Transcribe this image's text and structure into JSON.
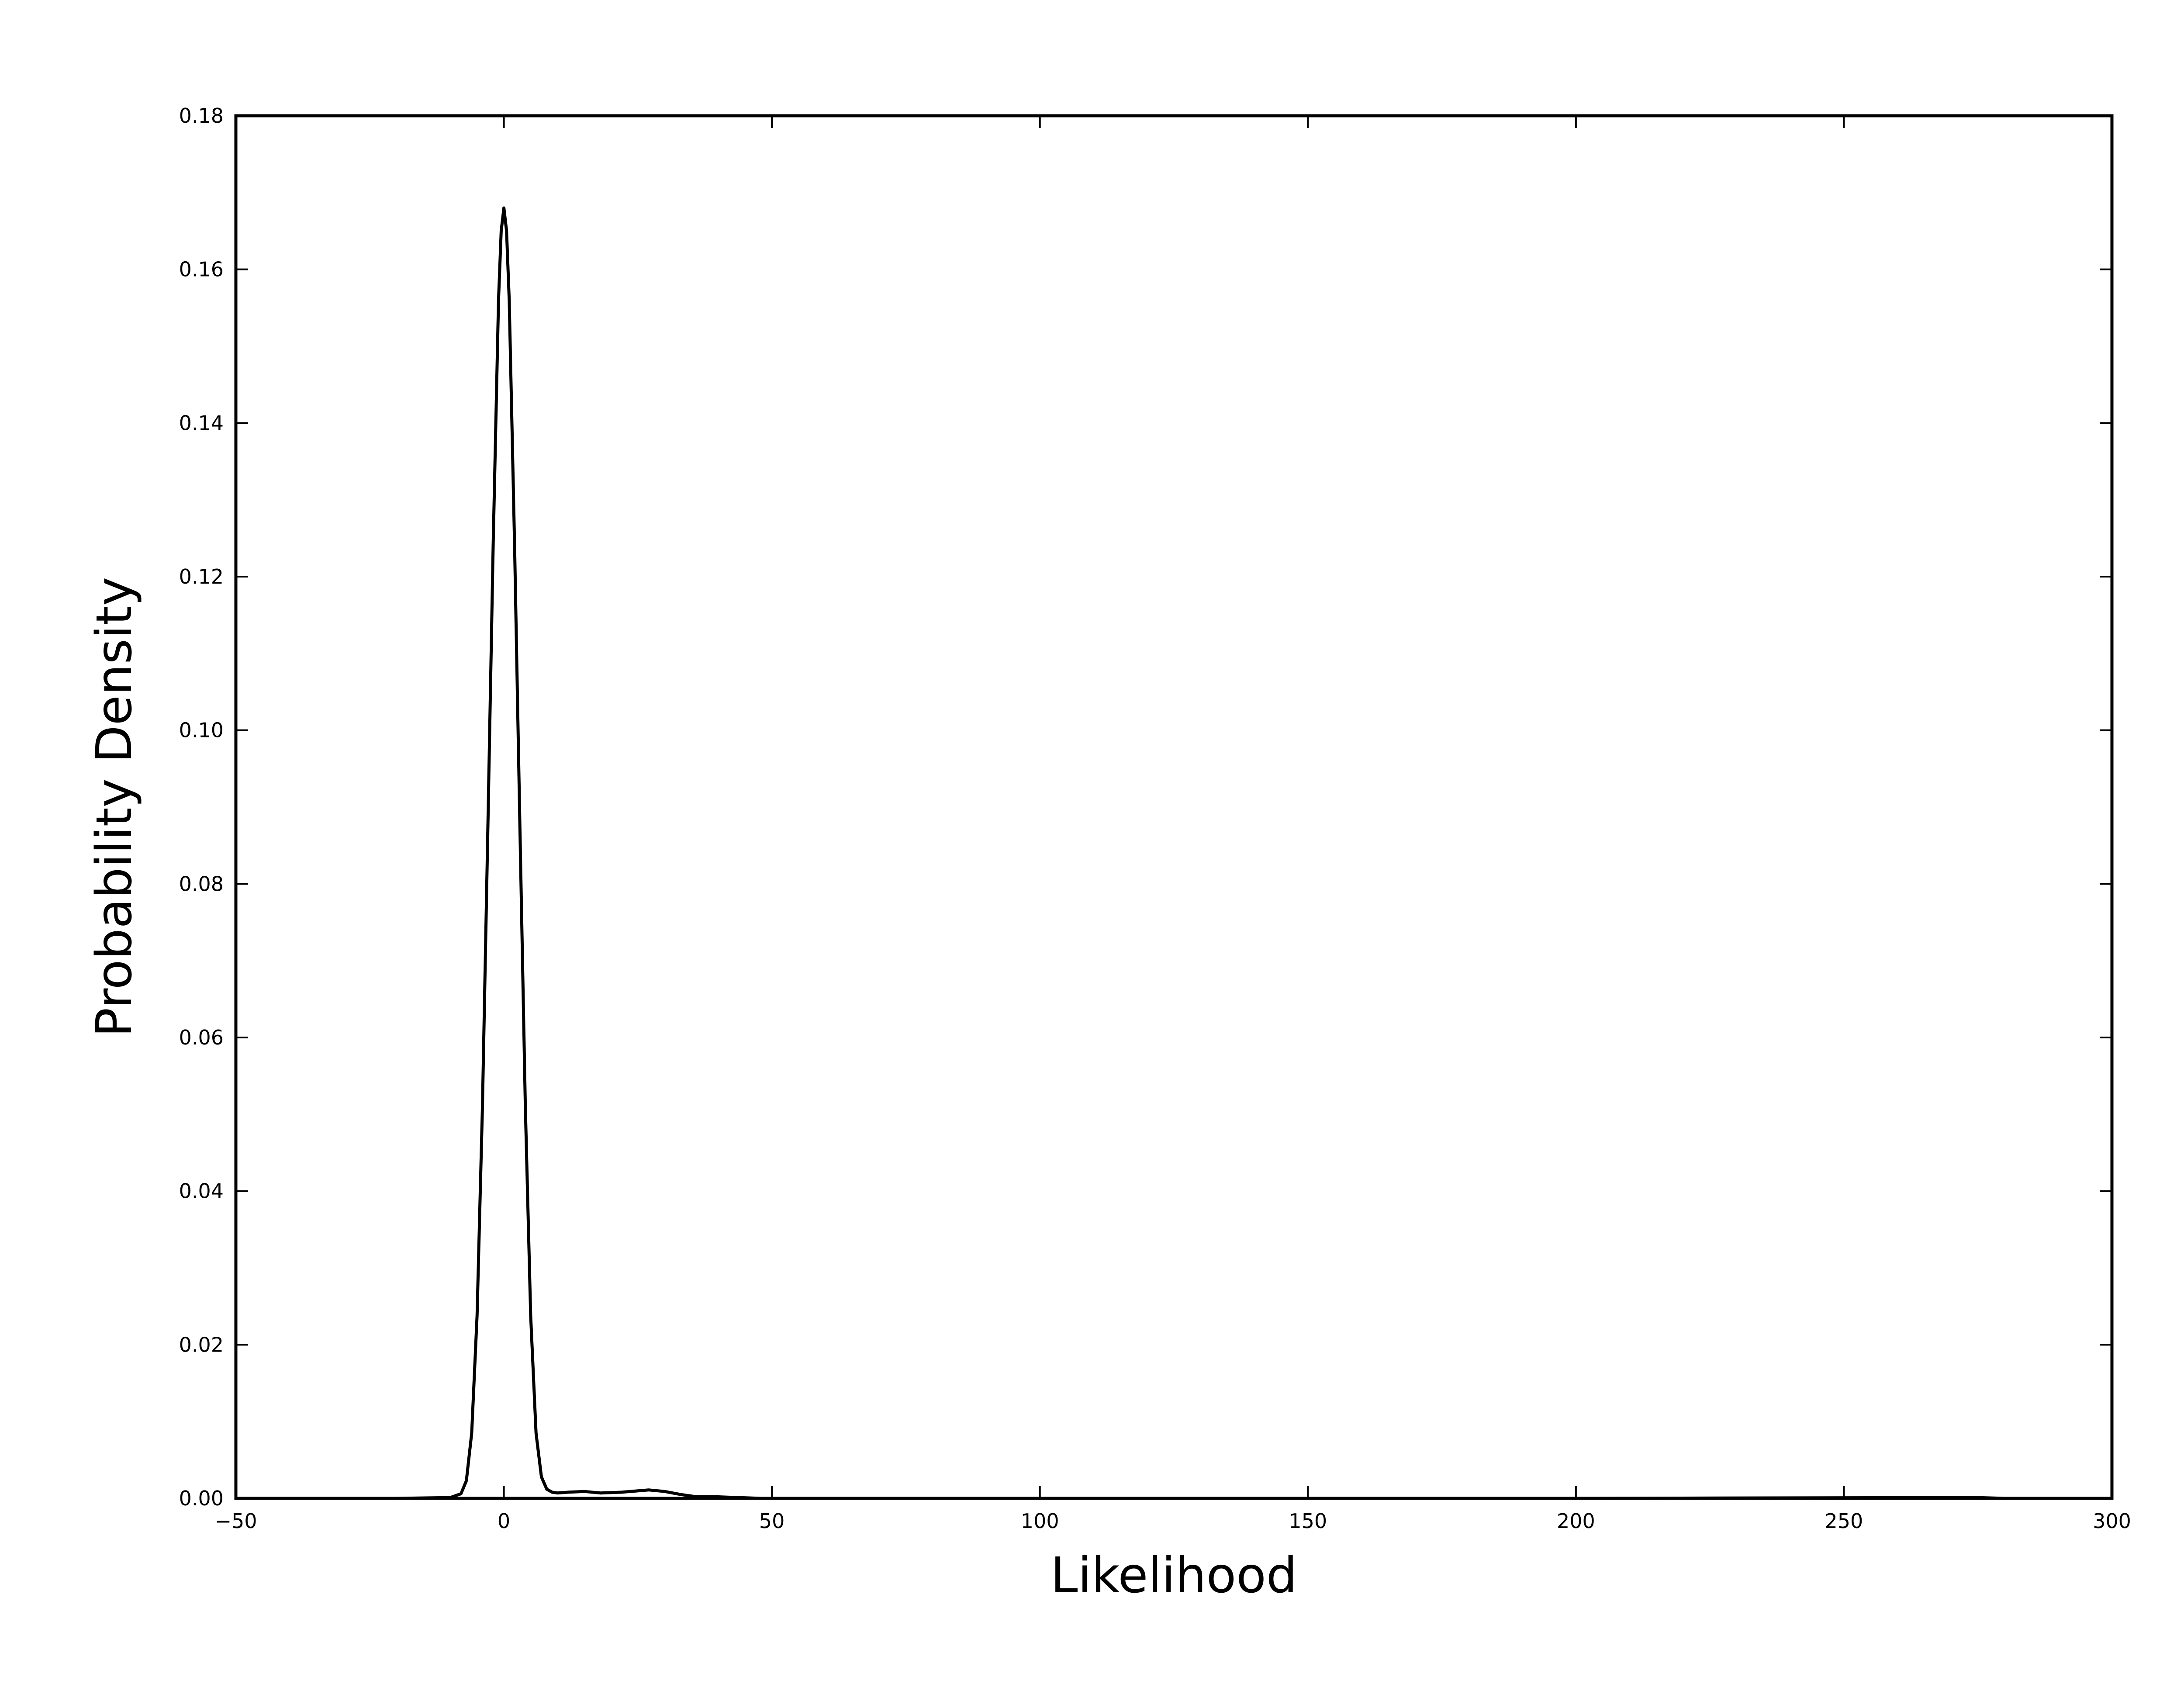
{
  "chart_data": {
    "type": "line",
    "title": "",
    "xlabel": "Likelihood",
    "ylabel": "Probability Density",
    "xlim": [
      -50,
      300
    ],
    "ylim": [
      0,
      0.18
    ],
    "xticks": [
      -50,
      0,
      50,
      100,
      150,
      200,
      250,
      300
    ],
    "xtick_labels": [
      "−50",
      "0",
      "50",
      "100",
      "150",
      "200",
      "250",
      "300"
    ],
    "yticks": [
      0,
      0.02,
      0.04,
      0.06,
      0.08,
      0.1,
      0.12,
      0.14,
      0.16,
      0.18
    ],
    "ytick_labels": [
      "0.00",
      "0.02",
      "0.04",
      "0.06",
      "0.08",
      "0.10",
      "0.12",
      "0.14",
      "0.16",
      "0.18"
    ],
    "grid": false,
    "legend": "none",
    "line_color": "#000000",
    "series": [
      {
        "x": [
          -50,
          -20,
          -10,
          -8,
          -7,
          -6,
          -5,
          -4,
          -3,
          -2,
          -1,
          -0.5,
          0,
          0.5,
          1,
          2,
          3,
          4,
          5,
          6,
          7,
          8,
          9,
          10,
          12,
          15,
          18,
          22,
          27,
          30,
          33,
          36,
          40,
          44,
          48,
          55,
          100,
          200,
          270,
          275,
          280,
          300
        ],
        "y": [
          0,
          0,
          0.0001,
          0.0006,
          0.0023,
          0.0085,
          0.0238,
          0.051,
          0.087,
          0.124,
          0.156,
          0.165,
          0.168,
          0.165,
          0.156,
          0.124,
          0.087,
          0.051,
          0.0238,
          0.0085,
          0.0028,
          0.0012,
          0.0008,
          0.0007,
          0.0008,
          0.0009,
          0.0007,
          0.0008,
          0.0011,
          0.0009,
          0.0005,
          0.0002,
          0.0002,
          0.0001,
          0,
          0,
          0,
          0,
          0.0001,
          0.0001,
          0,
          0
        ]
      }
    ]
  }
}
